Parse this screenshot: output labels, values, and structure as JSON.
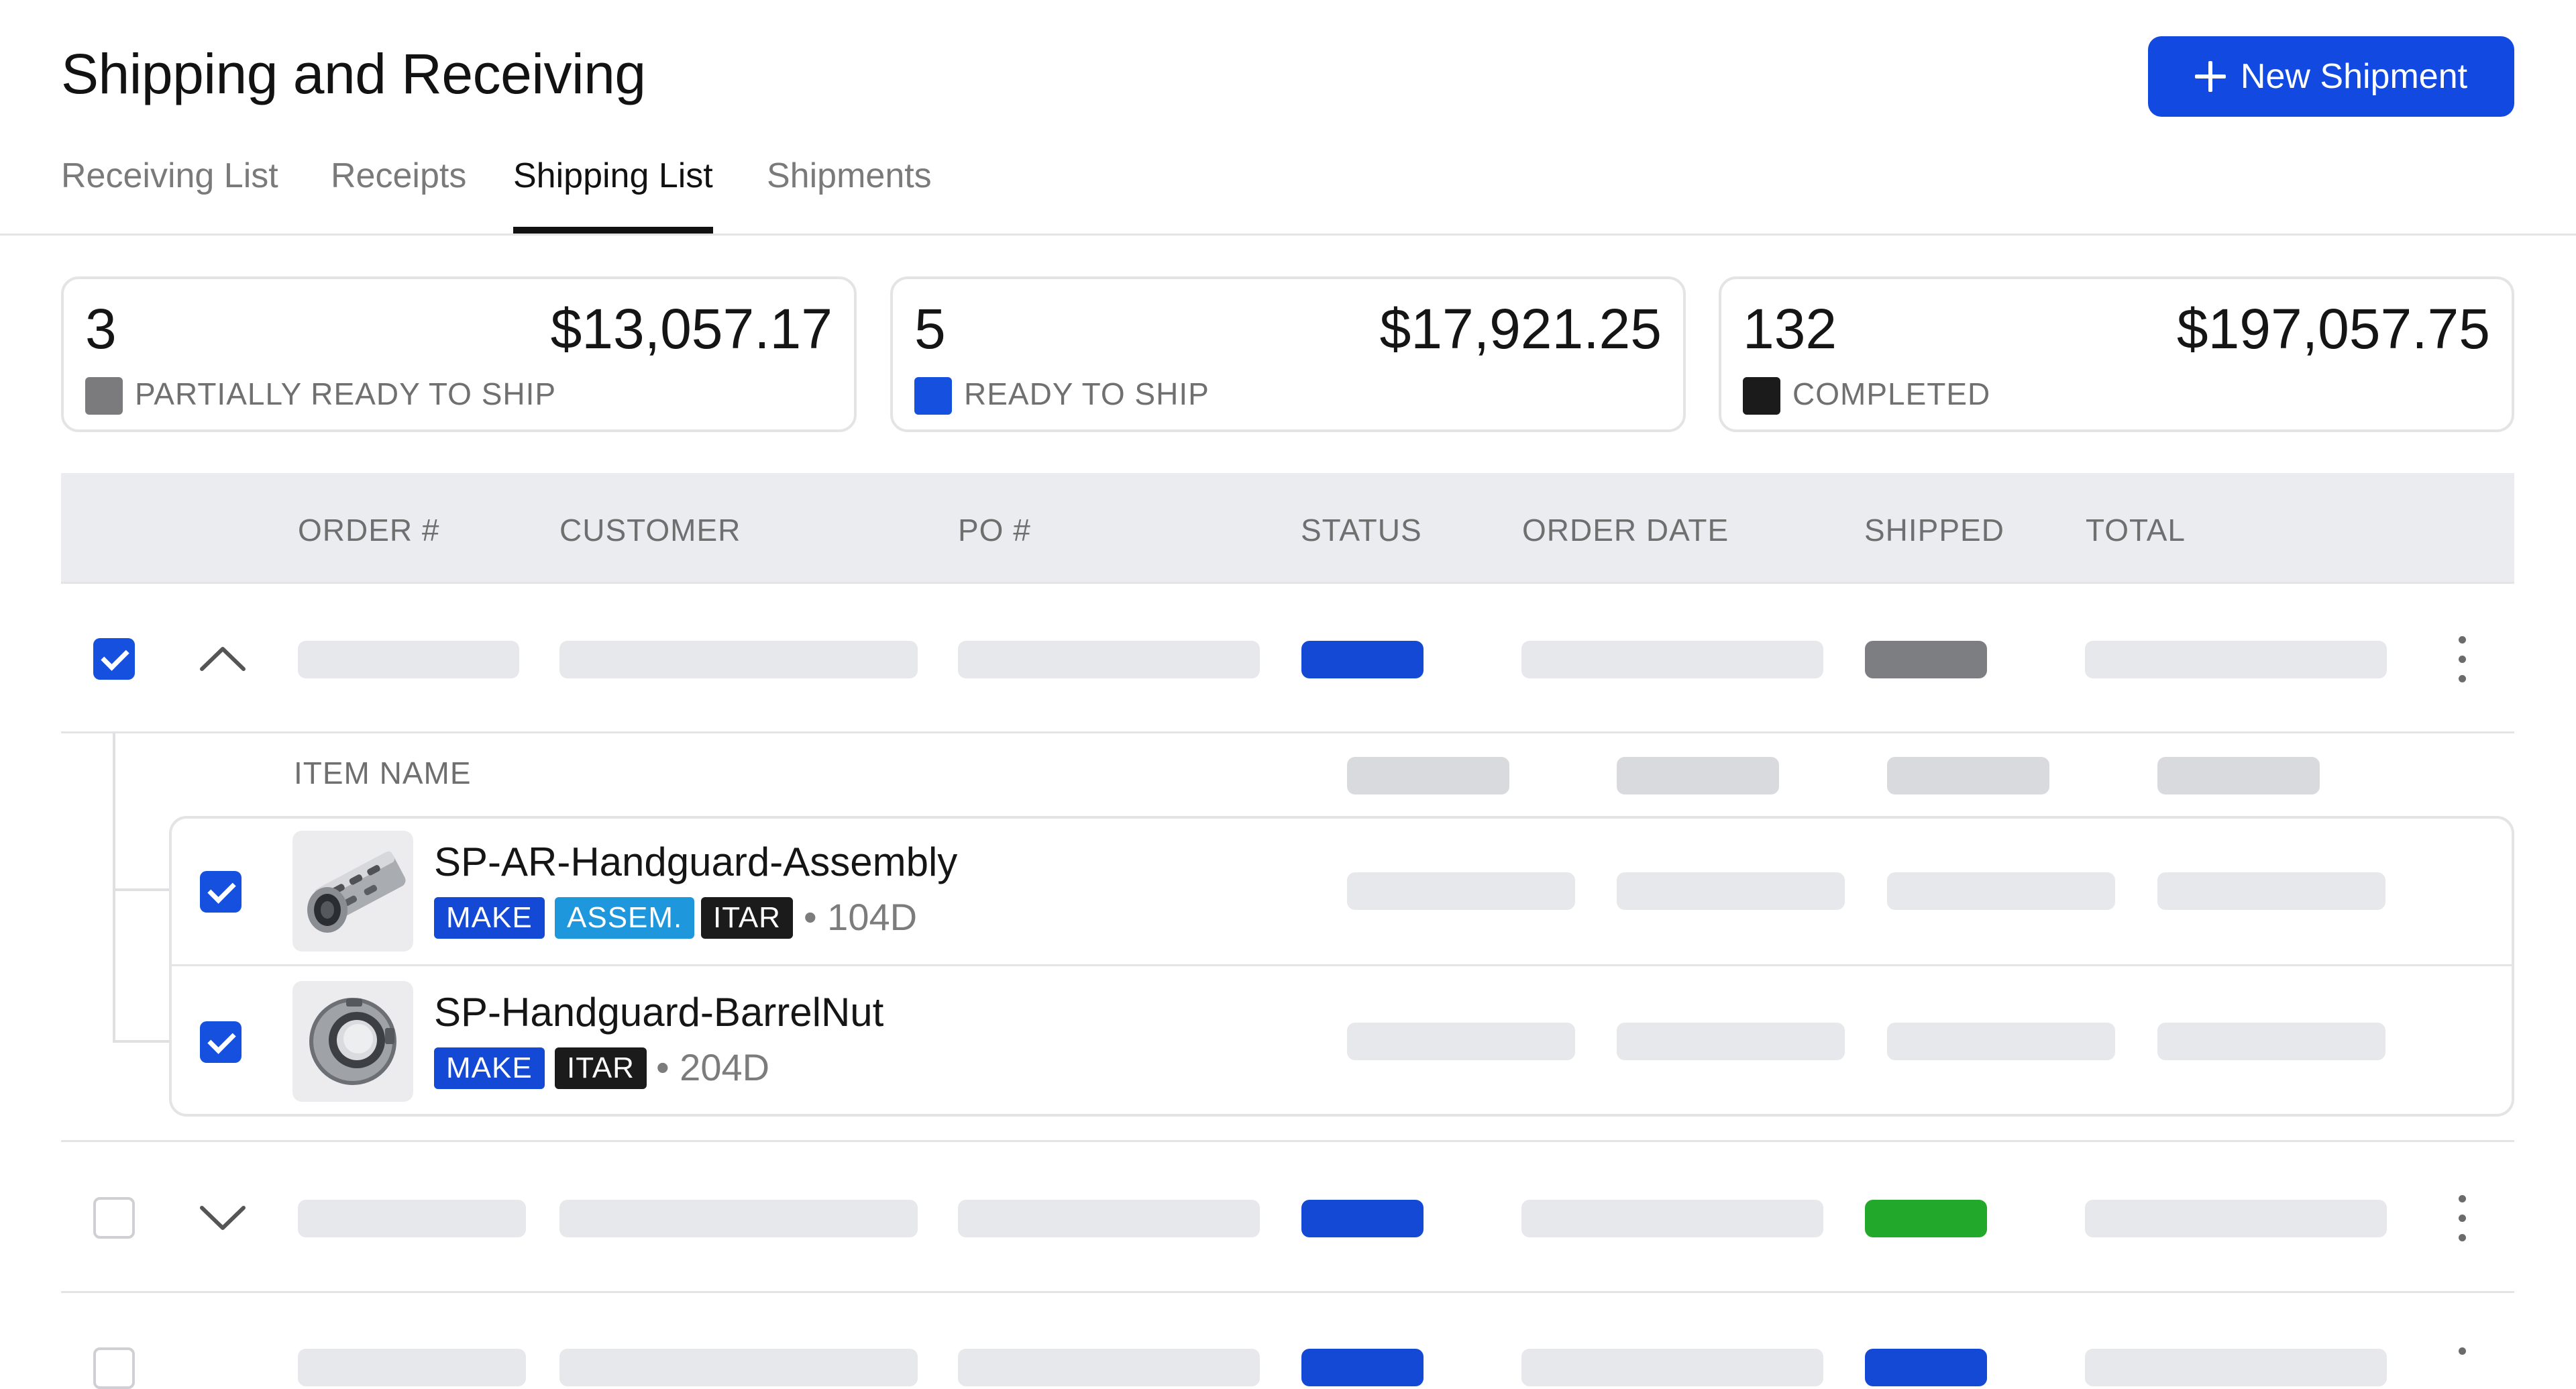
{
  "header": {
    "title": "Shipping and Receiving",
    "new_button_label": "New Shipment"
  },
  "tabs": [
    {
      "label": "Receiving List",
      "active": false
    },
    {
      "label": "Receipts",
      "active": false
    },
    {
      "label": "Shipping List",
      "active": true
    },
    {
      "label": "Shipments",
      "active": false
    }
  ],
  "summary_cards": [
    {
      "count": "3",
      "amount": "$13,057.17",
      "label": "PARTIALLY READY TO SHIP",
      "color": "#7b7b7e"
    },
    {
      "count": "5",
      "amount": "$17,921.25",
      "label": "READY TO SHIP",
      "color": "#1550df"
    },
    {
      "count": "132",
      "amount": "$197,057.75",
      "label": "COMPLETED",
      "color": "#1b1b1b"
    }
  ],
  "table": {
    "columns": [
      "ORDER #",
      "CUSTOMER",
      "PO #",
      "STATUS",
      "ORDER DATE",
      "SHIPPED",
      "TOTAL"
    ],
    "item_header": "ITEM NAME",
    "rows": [
      {
        "checked": true,
        "expanded": true,
        "status_color": "#1449d6",
        "shipped_color": "#7d7e81"
      },
      {
        "checked": false,
        "expanded": false,
        "status_color": "#1449d6",
        "shipped_color": "#22a82a"
      }
    ],
    "items": [
      {
        "name": "SP-AR-Handguard-Assembly",
        "checked": true,
        "tags": [
          {
            "text": "MAKE",
            "color": "#1449d6"
          },
          {
            "text": "ASSEM.",
            "color": "#1f97dd"
          },
          {
            "text": "ITAR",
            "color": "#1b1b1b"
          }
        ],
        "lead_time": "104D",
        "icon": "handguard-assembly-icon"
      },
      {
        "name": "SP-Handguard-BarrelNut",
        "checked": true,
        "tags": [
          {
            "text": "MAKE",
            "color": "#1449d6"
          },
          {
            "text": "ITAR",
            "color": "#1b1b1b"
          }
        ],
        "lead_time": "204D",
        "icon": "barrel-nut-icon"
      }
    ]
  }
}
